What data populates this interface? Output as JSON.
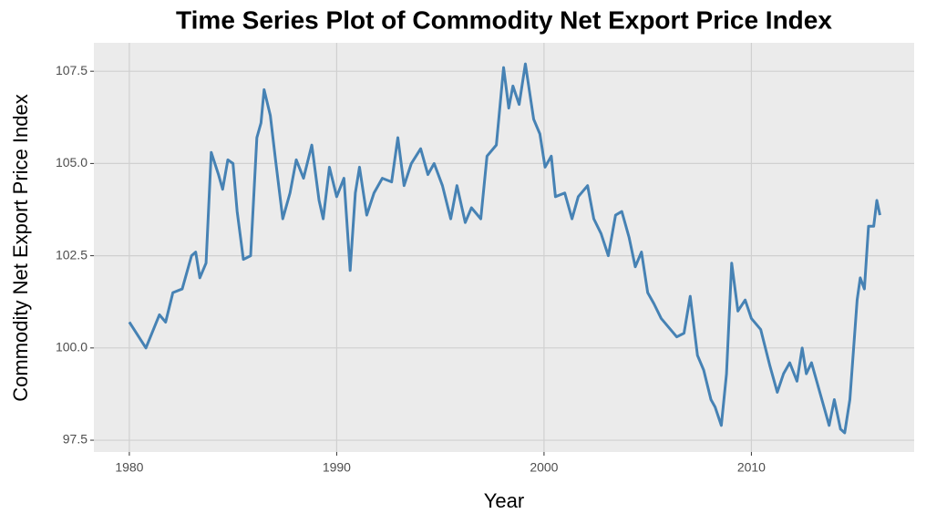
{
  "chart_data": {
    "type": "line",
    "title": "Time Series Plot of Commodity Net Export Price Index",
    "x_label": "Year",
    "y_label": "Commodity Net Export Price Index",
    "xlim": [
      1978.29,
      2017.85
    ],
    "ylim": [
      97.18,
      108.27
    ],
    "xticks": [
      1980,
      1990,
      2000,
      2010
    ],
    "yticks": [
      97.5,
      {
        "value": 100,
        "label": "100.0"
      },
      102.5,
      {
        "value": 105,
        "label": "105.0"
      },
      107.5
    ],
    "grid": true,
    "x": [
      1980.0,
      1980.8,
      1981.45,
      1981.75,
      1982.1,
      1982.55,
      1983.0,
      1983.2,
      1983.4,
      1983.7,
      1983.95,
      1984.3,
      1984.5,
      1984.75,
      1985.0,
      1985.2,
      1985.5,
      1985.85,
      1986.15,
      1986.35,
      1986.5,
      1986.8,
      1987.05,
      1987.4,
      1987.75,
      1988.05,
      1988.4,
      1988.8,
      1989.15,
      1989.35,
      1989.65,
      1990.0,
      1990.35,
      1990.65,
      1990.9,
      1991.1,
      1991.45,
      1991.8,
      1992.2,
      1992.65,
      1992.95,
      1993.25,
      1993.6,
      1994.05,
      1994.4,
      1994.7,
      1995.1,
      1995.5,
      1995.8,
      1996.2,
      1996.5,
      1996.95,
      1997.25,
      1997.7,
      1998.05,
      1998.3,
      1998.5,
      1998.8,
      1999.1,
      1999.5,
      1999.8,
      2000.05,
      2000.35,
      2000.55,
      2001.0,
      2001.35,
      2001.65,
      2002.1,
      2002.4,
      2002.75,
      2003.1,
      2003.45,
      2003.75,
      2004.1,
      2004.4,
      2004.7,
      2005.0,
      2005.3,
      2005.65,
      2006.1,
      2006.4,
      2006.75,
      2007.05,
      2007.4,
      2007.7,
      2008.05,
      2008.25,
      2008.55,
      2008.8,
      2009.05,
      2009.35,
      2009.7,
      2010.0,
      2010.45,
      2010.9,
      2011.25,
      2011.55,
      2011.85,
      2012.2,
      2012.45,
      2012.65,
      2012.9,
      2013.25,
      2013.55,
      2013.75,
      2014.0,
      2014.3,
      2014.5,
      2014.75,
      2015.1,
      2015.25,
      2015.45,
      2015.65,
      2015.9,
      2016.05,
      2016.2
    ],
    "series": [
      {
        "name": "Commodity Net Export Price Index",
        "color": "#4682b4",
        "values": [
          100.7,
          100.0,
          100.9,
          100.7,
          101.5,
          101.6,
          102.5,
          102.6,
          101.9,
          102.3,
          105.3,
          104.7,
          104.3,
          105.1,
          105.0,
          103.7,
          102.4,
          102.5,
          105.7,
          106.1,
          107.0,
          106.3,
          105.1,
          103.5,
          104.2,
          105.1,
          104.6,
          105.5,
          104.0,
          103.5,
          104.9,
          104.1,
          104.6,
          102.1,
          104.2,
          104.9,
          103.6,
          104.2,
          104.6,
          104.5,
          105.7,
          104.4,
          105.0,
          105.4,
          104.7,
          105.0,
          104.4,
          103.5,
          104.4,
          103.4,
          103.8,
          103.5,
          105.2,
          105.5,
          107.6,
          106.5,
          107.1,
          106.6,
          107.7,
          106.2,
          105.8,
          104.9,
          105.2,
          104.1,
          104.2,
          103.5,
          104.1,
          104.4,
          103.5,
          103.1,
          102.5,
          103.6,
          103.7,
          103.0,
          102.2,
          102.6,
          101.5,
          101.2,
          100.8,
          100.5,
          100.3,
          100.4,
          101.4,
          99.8,
          99.4,
          98.6,
          98.4,
          97.9,
          99.3,
          102.3,
          101.0,
          101.3,
          100.8,
          100.5,
          99.5,
          98.8,
          99.3,
          99.6,
          99.1,
          100.0,
          99.3,
          99.6,
          98.9,
          98.3,
          97.9,
          98.6,
          97.8,
          97.7,
          98.6,
          101.3,
          101.9,
          101.6,
          103.3,
          103.3,
          104.0,
          103.6
        ]
      }
    ]
  }
}
